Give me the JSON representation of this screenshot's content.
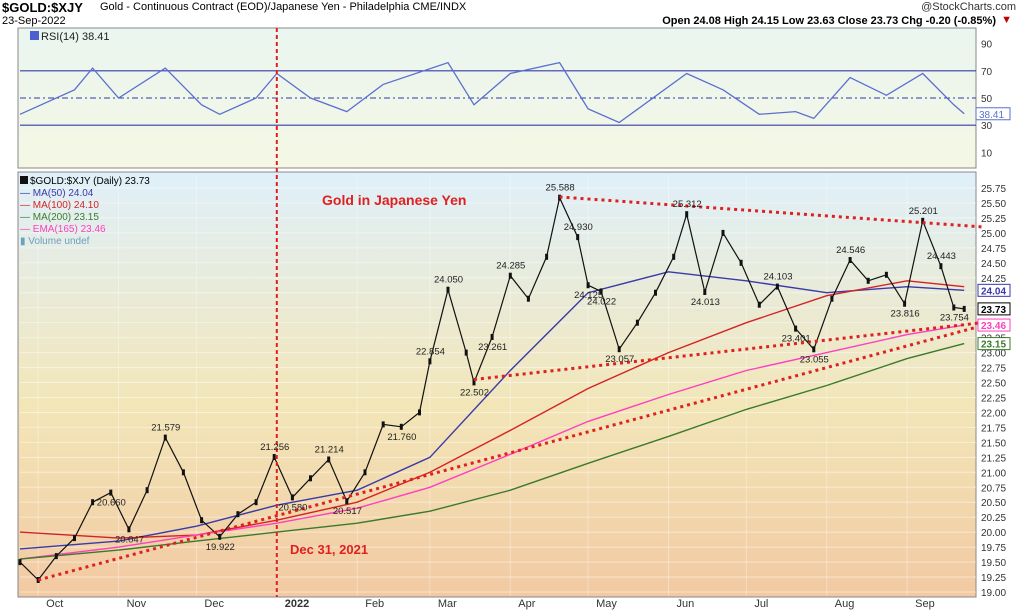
{
  "header": {
    "symbol": "$GOLD:$XJY",
    "description": "Gold - Continuous Contract (EOD)/Japanese Yen - Philadelphia CME/INDX",
    "date": "23-Sep-2022",
    "watermark": "@StockCharts.com",
    "ohlc": "Open 24.08  High 24.15  Low 23.63  Close 23.73  Chg -0.20 (-0.85%)",
    "chg_marker": "▼"
  },
  "rsi_panel": {
    "label": "RSI(14) 38.41",
    "current": "38.41",
    "ticks": [
      "90",
      "70",
      "50",
      "30",
      "10"
    ],
    "overbought": 70,
    "oversold": 30,
    "ylim": [
      0,
      100
    ]
  },
  "legend": {
    "main": "$GOLD:$XJY (Daily) 23.73",
    "ma50": "MA(50) 24.04",
    "ma100": "MA(100) 24.10",
    "ma200": "MA(200) 23.15",
    "ema165": "EMA(165) 23.46",
    "volume": "Volume undef"
  },
  "annotations": {
    "title": "Gold in Japanese Yen",
    "event": "Dec 31, 2021"
  },
  "price_axis_ticks": [
    "25.75",
    "25.50",
    "25.25",
    "25.00",
    "24.75",
    "24.50",
    "24.25",
    "24.00",
    "23.75",
    "23.50",
    "23.25",
    "23.00",
    "22.75",
    "22.50",
    "22.25",
    "22.00",
    "21.75",
    "21.50",
    "21.25",
    "21.00",
    "20.75",
    "20.50",
    "20.25",
    "20.00",
    "19.75",
    "19.50",
    "19.25",
    "19.00"
  ],
  "right_badges": [
    {
      "text": "24.04",
      "value": 24.04,
      "color": "#3a3aa8"
    },
    {
      "text": "23.73",
      "value": 23.73,
      "color": "#000000"
    },
    {
      "text": "23.46",
      "value": 23.46,
      "color": "#ff3fbf"
    },
    {
      "text": "23.15",
      "value": 23.15,
      "color": "#3a7a2a"
    }
  ],
  "colors": {
    "panel_bg_top": "#dff0fa",
    "panel_bg_bottom": "#f2c9a2",
    "ma50": "#3a3aa8",
    "ma100": "#d62222",
    "ma200": "#3a7a2a",
    "ema165": "#ff3fbf",
    "price": "#111111",
    "annotation": "#e02020",
    "rsi": "#5a6fd0",
    "rsi_fill": "#4aa0c8"
  },
  "chart_data": {
    "type": "line",
    "ylim": [
      19.0,
      25.85
    ],
    "x_months": [
      "Oct",
      "Nov",
      "Dec",
      "2022",
      "Feb",
      "Mar",
      "Apr",
      "May",
      "Jun",
      "Jul",
      "Aug",
      "Sep"
    ],
    "price_points": [
      {
        "x": "2021-09-24",
        "y": 19.5
      },
      {
        "x": "2021-10-01",
        "y": 19.2
      },
      {
        "x": "2021-10-08",
        "y": 19.6
      },
      {
        "x": "2021-10-15",
        "y": 19.9
      },
      {
        "x": "2021-10-22",
        "y": 20.5
      },
      {
        "x": "2021-10-29",
        "y": 20.66
      },
      {
        "x": "2021-11-05",
        "y": 20.047
      },
      {
        "x": "2021-11-12",
        "y": 20.7
      },
      {
        "x": "2021-11-19",
        "y": 21.579
      },
      {
        "x": "2021-11-26",
        "y": 21.0
      },
      {
        "x": "2021-12-03",
        "y": 20.2
      },
      {
        "x": "2021-12-10",
        "y": 19.922
      },
      {
        "x": "2021-12-17",
        "y": 20.3
      },
      {
        "x": "2021-12-24",
        "y": 20.5
      },
      {
        "x": "2021-12-31",
        "y": 21.256
      },
      {
        "x": "2022-01-07",
        "y": 20.58
      },
      {
        "x": "2022-01-14",
        "y": 20.9
      },
      {
        "x": "2022-01-21",
        "y": 21.214
      },
      {
        "x": "2022-01-28",
        "y": 20.517
      },
      {
        "x": "2022-02-04",
        "y": 21.0
      },
      {
        "x": "2022-02-11",
        "y": 21.8
      },
      {
        "x": "2022-02-18",
        "y": 21.76
      },
      {
        "x": "2022-02-25",
        "y": 22.0
      },
      {
        "x": "2022-03-01",
        "y": 22.854
      },
      {
        "x": "2022-03-08",
        "y": 24.05
      },
      {
        "x": "2022-03-15",
        "y": 23.0
      },
      {
        "x": "2022-03-18",
        "y": 22.502
      },
      {
        "x": "2022-03-25",
        "y": 23.261
      },
      {
        "x": "2022-04-01",
        "y": 24.285
      },
      {
        "x": "2022-04-08",
        "y": 23.9
      },
      {
        "x": "2022-04-15",
        "y": 24.6
      },
      {
        "x": "2022-04-20",
        "y": 25.588
      },
      {
        "x": "2022-04-27",
        "y": 24.93
      },
      {
        "x": "2022-05-01",
        "y": 24.125
      },
      {
        "x": "2022-05-06",
        "y": 24.022
      },
      {
        "x": "2022-05-13",
        "y": 23.057
      },
      {
        "x": "2022-05-20",
        "y": 23.5
      },
      {
        "x": "2022-05-27",
        "y": 24.0
      },
      {
        "x": "2022-06-03",
        "y": 24.6
      },
      {
        "x": "2022-06-08",
        "y": 25.312
      },
      {
        "x": "2022-06-15",
        "y": 24.013
      },
      {
        "x": "2022-06-22",
        "y": 25.0
      },
      {
        "x": "2022-06-29",
        "y": 24.5
      },
      {
        "x": "2022-07-06",
        "y": 23.8
      },
      {
        "x": "2022-07-13",
        "y": 24.103
      },
      {
        "x": "2022-07-20",
        "y": 23.401
      },
      {
        "x": "2022-07-27",
        "y": 23.055
      },
      {
        "x": "2022-08-03",
        "y": 23.9
      },
      {
        "x": "2022-08-10",
        "y": 24.546
      },
      {
        "x": "2022-08-17",
        "y": 24.2
      },
      {
        "x": "2022-08-24",
        "y": 24.3
      },
      {
        "x": "2022-08-31",
        "y": 23.816
      },
      {
        "x": "2022-09-07",
        "y": 25.201
      },
      {
        "x": "2022-09-14",
        "y": 24.443
      },
      {
        "x": "2022-09-19",
        "y": 23.754
      },
      {
        "x": "2022-09-23",
        "y": 23.73
      }
    ],
    "series": [
      {
        "name": "MA(50) 24.04",
        "color": "#3a3aa8",
        "points": [
          {
            "x": "2021-09-24",
            "y": 19.72
          },
          {
            "x": "2021-11-01",
            "y": 19.85
          },
          {
            "x": "2021-12-01",
            "y": 20.1
          },
          {
            "x": "2022-01-01",
            "y": 20.45
          },
          {
            "x": "2022-02-01",
            "y": 20.7
          },
          {
            "x": "2022-03-01",
            "y": 21.25
          },
          {
            "x": "2022-04-01",
            "y": 22.7
          },
          {
            "x": "2022-05-01",
            "y": 24.0
          },
          {
            "x": "2022-06-01",
            "y": 24.35
          },
          {
            "x": "2022-07-01",
            "y": 24.2
          },
          {
            "x": "2022-08-01",
            "y": 24.0
          },
          {
            "x": "2022-09-01",
            "y": 24.1
          },
          {
            "x": "2022-09-23",
            "y": 24.04
          }
        ]
      },
      {
        "name": "MA(100) 24.10",
        "color": "#d62222",
        "points": [
          {
            "x": "2021-09-24",
            "y": 20.0
          },
          {
            "x": "2021-11-01",
            "y": 19.9
          },
          {
            "x": "2021-12-01",
            "y": 19.95
          },
          {
            "x": "2022-01-01",
            "y": 20.2
          },
          {
            "x": "2022-02-01",
            "y": 20.5
          },
          {
            "x": "2022-03-01",
            "y": 21.0
          },
          {
            "x": "2022-04-01",
            "y": 21.7
          },
          {
            "x": "2022-05-01",
            "y": 22.4
          },
          {
            "x": "2022-06-01",
            "y": 23.0
          },
          {
            "x": "2022-07-01",
            "y": 23.5
          },
          {
            "x": "2022-08-01",
            "y": 23.95
          },
          {
            "x": "2022-09-01",
            "y": 24.2
          },
          {
            "x": "2022-09-23",
            "y": 24.1
          }
        ]
      },
      {
        "name": "EMA(165) 23.46",
        "color": "#ff3fbf",
        "points": [
          {
            "x": "2021-09-24",
            "y": 19.55
          },
          {
            "x": "2021-11-01",
            "y": 19.75
          },
          {
            "x": "2021-12-01",
            "y": 19.95
          },
          {
            "x": "2022-01-01",
            "y": 20.15
          },
          {
            "x": "2022-02-01",
            "y": 20.4
          },
          {
            "x": "2022-03-01",
            "y": 20.75
          },
          {
            "x": "2022-04-01",
            "y": 21.3
          },
          {
            "x": "2022-05-01",
            "y": 21.85
          },
          {
            "x": "2022-06-01",
            "y": 22.3
          },
          {
            "x": "2022-07-01",
            "y": 22.7
          },
          {
            "x": "2022-08-01",
            "y": 23.0
          },
          {
            "x": "2022-09-01",
            "y": 23.3
          },
          {
            "x": "2022-09-23",
            "y": 23.46
          }
        ]
      },
      {
        "name": "MA(200) 23.15",
        "color": "#3a7a2a",
        "points": [
          {
            "x": "2021-09-24",
            "y": 19.55
          },
          {
            "x": "2021-11-01",
            "y": 19.7
          },
          {
            "x": "2021-12-01",
            "y": 19.85
          },
          {
            "x": "2022-01-01",
            "y": 20.0
          },
          {
            "x": "2022-02-01",
            "y": 20.15
          },
          {
            "x": "2022-03-01",
            "y": 20.35
          },
          {
            "x": "2022-04-01",
            "y": 20.7
          },
          {
            "x": "2022-05-01",
            "y": 21.15
          },
          {
            "x": "2022-06-01",
            "y": 21.6
          },
          {
            "x": "2022-07-01",
            "y": 22.05
          },
          {
            "x": "2022-08-01",
            "y": 22.45
          },
          {
            "x": "2022-09-01",
            "y": 22.9
          },
          {
            "x": "2022-09-23",
            "y": 23.15
          }
        ]
      }
    ],
    "rsi_points": [
      {
        "x": "2021-09-24",
        "y": 38
      },
      {
        "x": "2021-10-15",
        "y": 56
      },
      {
        "x": "2021-10-22",
        "y": 72
      },
      {
        "x": "2021-11-01",
        "y": 50
      },
      {
        "x": "2021-11-19",
        "y": 72
      },
      {
        "x": "2021-12-03",
        "y": 45
      },
      {
        "x": "2021-12-10",
        "y": 38
      },
      {
        "x": "2021-12-24",
        "y": 50
      },
      {
        "x": "2022-01-01",
        "y": 68
      },
      {
        "x": "2022-01-14",
        "y": 50
      },
      {
        "x": "2022-01-28",
        "y": 40
      },
      {
        "x": "2022-02-11",
        "y": 60
      },
      {
        "x": "2022-03-08",
        "y": 76
      },
      {
        "x": "2022-03-18",
        "y": 45
      },
      {
        "x": "2022-04-01",
        "y": 68
      },
      {
        "x": "2022-04-20",
        "y": 76
      },
      {
        "x": "2022-05-01",
        "y": 42
      },
      {
        "x": "2022-05-13",
        "y": 32
      },
      {
        "x": "2022-06-08",
        "y": 68
      },
      {
        "x": "2022-06-22",
        "y": 56
      },
      {
        "x": "2022-07-06",
        "y": 38
      },
      {
        "x": "2022-07-20",
        "y": 40
      },
      {
        "x": "2022-07-27",
        "y": 35
      },
      {
        "x": "2022-08-10",
        "y": 65
      },
      {
        "x": "2022-08-24",
        "y": 52
      },
      {
        "x": "2022-09-07",
        "y": 68
      },
      {
        "x": "2022-09-19",
        "y": 45
      },
      {
        "x": "2022-09-23",
        "y": 38.41
      }
    ],
    "point_labels": [
      {
        "text": "20.660",
        "x": "2021-10-29",
        "y": 20.66
      },
      {
        "text": "20.047",
        "x": "2021-11-05",
        "y": 20.047
      },
      {
        "text": "21.579",
        "x": "2021-11-19",
        "y": 21.579
      },
      {
        "text": "19.922",
        "x": "2021-12-10",
        "y": 19.922
      },
      {
        "text": "21.256",
        "x": "2021-12-31",
        "y": 21.256
      },
      {
        "text": "20.580",
        "x": "2022-01-07",
        "y": 20.58
      },
      {
        "text": "21.214",
        "x": "2022-01-21",
        "y": 21.214
      },
      {
        "text": "20.517",
        "x": "2022-01-28",
        "y": 20.517
      },
      {
        "text": "21.760",
        "x": "2022-02-18",
        "y": 21.76
      },
      {
        "text": "22.854",
        "x": "2022-03-01",
        "y": 22.854
      },
      {
        "text": "24.050",
        "x": "2022-03-08",
        "y": 24.05
      },
      {
        "text": "22.502",
        "x": "2022-03-18",
        "y": 22.502
      },
      {
        "text": "23.261",
        "x": "2022-03-25",
        "y": 23.261
      },
      {
        "text": "24.285",
        "x": "2022-04-01",
        "y": 24.285
      },
      {
        "text": "25.588",
        "x": "2022-04-20",
        "y": 25.588
      },
      {
        "text": "24.930",
        "x": "2022-04-27",
        "y": 24.93
      },
      {
        "text": "24.125",
        "x": "2022-05-01",
        "y": 24.125
      },
      {
        "text": "24.022",
        "x": "2022-05-06",
        "y": 24.022
      },
      {
        "text": "23.057",
        "x": "2022-05-13",
        "y": 23.057
      },
      {
        "text": "25.312",
        "x": "2022-06-08",
        "y": 25.312
      },
      {
        "text": "24.013",
        "x": "2022-06-15",
        "y": 24.013
      },
      {
        "text": "24.103",
        "x": "2022-07-13",
        "y": 24.103
      },
      {
        "text": "23.401",
        "x": "2022-07-20",
        "y": 23.401
      },
      {
        "text": "23.055",
        "x": "2022-07-27",
        "y": 23.055
      },
      {
        "text": "24.546",
        "x": "2022-08-10",
        "y": 24.546
      },
      {
        "text": "23.816",
        "x": "2022-08-31",
        "y": 23.816
      },
      {
        "text": "25.201",
        "x": "2022-09-07",
        "y": 25.201
      },
      {
        "text": "24.443",
        "x": "2022-09-14",
        "y": 24.443
      },
      {
        "text": "23.754",
        "x": "2022-09-19",
        "y": 23.754
      }
    ],
    "trendlines": [
      {
        "from": {
          "x": "2021-10-01",
          "y": 19.2
        },
        "to": {
          "x": "2022-09-30",
          "y": 23.45
        }
      },
      {
        "from": {
          "x": "2022-03-18",
          "y": 22.55
        },
        "to": {
          "x": "2022-09-30",
          "y": 23.5
        }
      },
      {
        "from": {
          "x": "2022-04-20",
          "y": 25.6
        },
        "to": {
          "x": "2022-09-30",
          "y": 25.1
        }
      }
    ],
    "vertical_marker": {
      "x": "2022-01-01"
    }
  }
}
